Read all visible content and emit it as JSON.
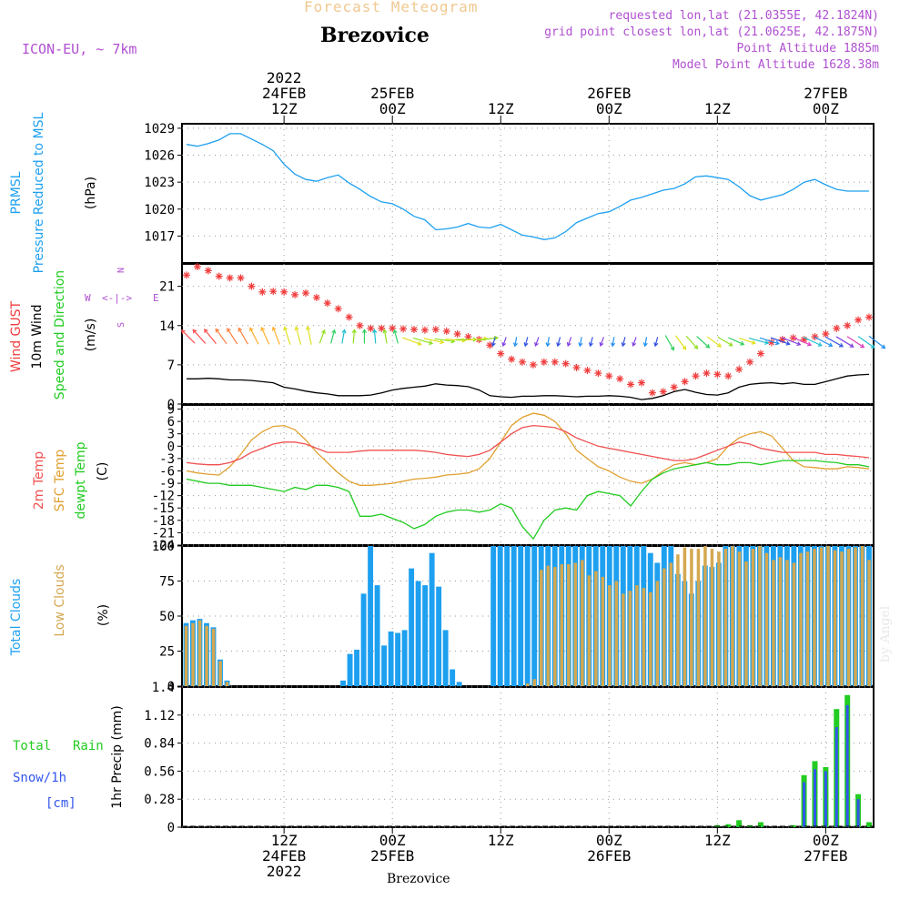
{
  "header": {
    "supertitle": "Forecast Meteogram",
    "model": "ICON-EU, ~ 7km",
    "location": "Brezovice",
    "requested": "requested lon,lat (21.0355E, 42.1824N)",
    "grid_point": "grid point closest lon,lat (21.0625E, 42.1875N)",
    "point_altitude": "Point Altitude 1885m",
    "model_altitude": "Model Point Altitude 1628.38m",
    "credit": "by Angel",
    "footer_location": "Brezovice"
  },
  "colors": {
    "pressure": "#1ea0f0",
    "gust": "#f03c3c",
    "wind": "#000000",
    "t2m": "#f05050",
    "sfc": "#e0a030",
    "dewpt": "#22cc22",
    "total_clouds": "#1ea0f0",
    "low_clouds": "#d4a850",
    "rain": "#22cc22",
    "snow": "#3355ee",
    "meta": "#b050d0"
  },
  "chart_data": [
    {
      "type": "line",
      "panel": "pressure",
      "ylabel_lines": [
        "PRMSL",
        "Pressure Reduced to MSL"
      ],
      "unit": "(hPa)",
      "ylim": [
        1014,
        1029.5
      ],
      "yticks": [
        1017,
        1020,
        1023,
        1026,
        1029
      ],
      "series": [
        {
          "name": "PRMSL",
          "x": [
            0,
            1,
            2,
            3,
            4,
            5,
            6,
            7,
            8,
            9,
            10,
            11,
            12,
            13,
            14,
            15,
            16,
            17,
            18,
            19,
            20,
            21,
            22,
            23,
            24,
            25,
            26,
            27,
            28,
            29,
            30,
            31,
            32,
            33,
            34,
            35,
            36,
            37,
            38,
            39,
            40,
            41,
            42,
            43,
            44,
            45,
            46,
            47,
            48,
            49,
            50,
            51,
            52,
            53,
            54,
            55,
            56,
            57,
            58,
            59,
            60,
            61,
            62,
            63
          ],
          "values": [
            1027.2,
            1027.0,
            1027.3,
            1027.7,
            1028.4,
            1028.4,
            1027.8,
            1027.2,
            1026.5,
            1025.0,
            1023.9,
            1023.3,
            1023.1,
            1023.5,
            1023.8,
            1022.9,
            1022.2,
            1021.4,
            1020.8,
            1020.6,
            1020.0,
            1019.2,
            1018.8,
            1017.7,
            1017.8,
            1018.0,
            1018.4,
            1018.0,
            1017.9,
            1018.3,
            1017.7,
            1017.1,
            1016.9,
            1016.6,
            1016.8,
            1017.5,
            1018.5,
            1019.0,
            1019.5,
            1019.7,
            1020.3,
            1021.0,
            1021.3,
            1021.7,
            1022.1,
            1022.3,
            1022.8,
            1023.6,
            1023.7,
            1023.5,
            1023.3,
            1022.5,
            1021.5,
            1021.0,
            1021.3,
            1021.6,
            1022.2,
            1023.0,
            1023.3,
            1022.7,
            1022.2,
            1022.0,
            1022.0,
            1022.0
          ]
        }
      ]
    },
    {
      "type": "line",
      "panel": "wind",
      "ylabel_lines": [
        "Wind GUST",
        "10m Wind",
        "Speed and Direction"
      ],
      "unit": "(m/s)",
      "compass": {
        "n": "N",
        "s": "S",
        "w": "W",
        "e": "E"
      },
      "ylim": [
        0,
        25
      ],
      "yticks": [
        0,
        7,
        14,
        21
      ],
      "series": [
        {
          "name": "Wind GUST",
          "values": [
            23,
            24.5,
            23.8,
            22.8,
            22.5,
            22.5,
            21,
            20,
            20.1,
            20,
            19.5,
            19.8,
            19,
            18,
            17,
            15.5,
            14,
            13.5,
            13.5,
            13.5,
            13.4,
            13.3,
            13.2,
            13.3,
            13,
            12.5,
            12,
            11.5,
            10.5,
            9,
            8,
            7.5,
            7,
            7.5,
            7.5,
            7.2,
            6.5,
            6,
            5.5,
            5,
            4.5,
            3.5,
            3.8,
            2,
            2.2,
            3,
            4,
            5,
            5.5,
            5.3,
            5,
            6.2,
            7.5,
            9,
            11,
            11.5,
            11.8,
            11.5,
            12,
            12.5,
            13.5,
            14,
            15,
            15.5
          ]
        },
        {
          "name": "10m Wind",
          "values": [
            4.5,
            4.5,
            4.6,
            4.5,
            4.3,
            4.3,
            4.2,
            4.0,
            3.8,
            3.0,
            2.7,
            2.3,
            2.0,
            1.8,
            1.5,
            1.5,
            1.5,
            1.6,
            2.0,
            2.5,
            2.8,
            3.0,
            3.2,
            3.6,
            3.4,
            3.3,
            3.1,
            2.5,
            1.5,
            1.3,
            1.2,
            1.4,
            1.4,
            1.5,
            1.5,
            1.4,
            1.3,
            1.4,
            1.4,
            1.5,
            1.4,
            1.2,
            0.8,
            1.0,
            1.5,
            2.2,
            2.6,
            2.1,
            1.7,
            1.6,
            2.0,
            3.0,
            3.5,
            3.7,
            3.8,
            3.6,
            3.8,
            3.5,
            3.5,
            4.0,
            4.5,
            5.0,
            5.2,
            5.3
          ]
        }
      ]
    },
    {
      "type": "line",
      "panel": "temperature",
      "ylabel_lines": [
        "2m Temp",
        "SFC Temp",
        "dewpt Temp"
      ],
      "unit": "(C)",
      "ylim": [
        -24,
        10
      ],
      "yticks": [
        9,
        6,
        3,
        0,
        -3,
        -6,
        -9,
        -12,
        -15,
        -18,
        -21,
        -24
      ],
      "series": [
        {
          "name": "2m Temp",
          "values": [
            -4,
            -4.3,
            -4.5,
            -4.5,
            -4,
            -3,
            -1.5,
            -0.5,
            0.5,
            1,
            1,
            0.5,
            -0.5,
            -1.5,
            -1.5,
            -1.5,
            -1.2,
            -1,
            -1,
            -1,
            -1,
            -1,
            -1.2,
            -1.5,
            -2,
            -2.3,
            -2.5,
            -2,
            -1,
            1,
            3,
            4.5,
            5,
            4.8,
            4.5,
            3.5,
            2,
            1,
            0,
            -0.5,
            -1,
            -1.5,
            -2,
            -2.5,
            -3,
            -3.5,
            -3.5,
            -3,
            -2,
            -1,
            0,
            1,
            0.5,
            -0.5,
            -1,
            -1.5,
            -1.5,
            -1.5,
            -1.5,
            -2,
            -2,
            -2.3,
            -2.5,
            -2.8
          ]
        },
        {
          "name": "SFC Temp",
          "values": [
            -6,
            -6.5,
            -6.8,
            -7,
            -5,
            -2,
            1.5,
            3.5,
            4.8,
            5,
            4,
            1.5,
            -1.5,
            -4,
            -6.5,
            -8.5,
            -9.5,
            -9.5,
            -9.3,
            -9,
            -8.5,
            -8,
            -7.8,
            -7.5,
            -7,
            -6.8,
            -6.5,
            -5.5,
            -3,
            1,
            5,
            7,
            8,
            7.5,
            6,
            3,
            -1,
            -3,
            -5,
            -6,
            -7.5,
            -8.5,
            -9,
            -8,
            -6,
            -4.5,
            -4,
            -4.5,
            -4,
            -3,
            0,
            2,
            3,
            3.5,
            2.5,
            -0.5,
            -3.5,
            -5,
            -5.2,
            -5.5,
            -5.5,
            -5,
            -5.2,
            -5.5
          ]
        },
        {
          "name": "dewpt Temp",
          "values": [
            -8,
            -8.5,
            -9,
            -9,
            -9.5,
            -9.5,
            -9.5,
            -10,
            -10.5,
            -11,
            -10,
            -10.5,
            -9.5,
            -9.5,
            -10,
            -11,
            -17,
            -17,
            -16.5,
            -17.5,
            -18.5,
            -20,
            -19,
            -17,
            -16,
            -15.5,
            -15.5,
            -16,
            -15.5,
            -14,
            -15,
            -19.5,
            -22.5,
            -18,
            -15.5,
            -15,
            -15.5,
            -12,
            -11,
            -11.5,
            -12,
            -14.5,
            -11,
            -8,
            -6.5,
            -5.5,
            -5,
            -4.5,
            -4,
            -4.5,
            -4.5,
            -4,
            -4,
            -4.5,
            -4,
            -3.5,
            -3.5,
            -3.5,
            -3.5,
            -3.8,
            -4,
            -4.5,
            -4.5,
            -5
          ]
        }
      ]
    },
    {
      "type": "bar",
      "panel": "clouds",
      "ylabel_lines": [
        "Total Clouds",
        "Low Clouds"
      ],
      "unit": "(%)",
      "ylim": [
        0,
        100
      ],
      "yticks": [
        0,
        25,
        50,
        75,
        100
      ],
      "series": [
        {
          "name": "Total Clouds",
          "values": [
            45,
            47,
            48,
            45,
            42,
            19,
            4,
            0,
            0,
            0,
            0,
            0,
            0,
            0,
            0,
            0,
            0,
            0,
            0,
            0,
            0,
            0,
            0,
            4,
            23,
            26,
            66,
            100,
            72,
            29,
            39,
            38,
            40,
            84,
            75,
            72,
            95,
            71,
            40,
            12,
            3,
            0,
            0,
            0,
            0,
            100,
            100,
            100,
            100,
            100,
            100,
            100,
            100,
            100,
            100,
            100,
            100,
            100,
            100,
            100,
            100,
            100,
            100,
            100,
            100,
            100,
            100,
            100,
            95,
            88,
            100,
            100,
            80,
            75,
            66,
            75,
            86,
            85,
            88,
            100,
            100,
            100,
            100,
            100,
            100,
            100,
            100,
            100,
            100,
            100,
            100,
            100,
            100,
            100,
            100,
            100,
            100,
            100,
            100,
            100,
            100
          ]
        },
        {
          "name": "Low Clouds",
          "values": [
            43,
            45,
            47,
            43,
            41,
            18,
            3,
            0,
            0,
            0,
            0,
            0,
            0,
            0,
            0,
            0,
            0,
            0,
            0,
            0,
            0,
            0,
            0,
            0,
            0,
            0,
            0,
            0,
            0,
            0,
            0,
            0,
            0,
            0,
            0,
            0,
            0,
            0,
            0,
            0,
            0,
            0,
            0,
            0,
            0,
            0,
            0,
            0,
            0,
            0,
            2,
            5,
            83,
            86,
            85,
            87,
            87,
            88,
            90,
            79,
            82,
            78,
            72,
            75,
            66,
            68,
            72,
            70,
            67,
            75,
            84,
            88,
            94,
            99,
            98,
            98,
            100,
            98,
            96,
            98,
            100,
            96,
            89,
            98,
            100,
            95,
            90,
            92,
            90,
            88,
            95,
            96,
            98,
            99,
            100,
            97,
            96,
            98,
            99,
            100,
            90
          ]
        }
      ]
    },
    {
      "type": "bar",
      "panel": "precip",
      "ylabel_lines": [
        "Total Rain",
        "Snow/1h",
        "[cm]"
      ],
      "ylabel": "1hr Precip (mm)",
      "ylim": [
        0,
        1.4
      ],
      "yticks": [
        0,
        0.28,
        0.56,
        0.84,
        1.12,
        1.4
      ],
      "series": [
        {
          "name": "Total Rain",
          "x": [
            49,
            50,
            51,
            52,
            53,
            54,
            56,
            57,
            58,
            59,
            60,
            61,
            62,
            63
          ],
          "values": [
            0.02,
            0.03,
            0.07,
            0.02,
            0.05,
            0.0,
            0.02,
            0.52,
            0.66,
            0.6,
            1.18,
            1.32,
            0.33,
            0.05
          ]
        },
        {
          "name": "Snow/1h",
          "x": [
            56,
            57,
            58,
            59,
            60,
            61,
            62,
            63
          ],
          "values": [
            0.0,
            0.45,
            0.58,
            0.56,
            1.0,
            1.22,
            0.28,
            0.0
          ]
        }
      ]
    }
  ],
  "time_axis": {
    "top_ticks": [
      {
        "x": 9,
        "lines": [
          "2022",
          "24FEB",
          "12Z"
        ]
      },
      {
        "x": 19,
        "lines": [
          "25FEB",
          "00Z"
        ]
      },
      {
        "x": 29,
        "lines": [
          "12Z"
        ]
      },
      {
        "x": 39,
        "lines": [
          "26FEB",
          "00Z"
        ]
      },
      {
        "x": 49,
        "lines": [
          "12Z"
        ]
      },
      {
        "x": 59,
        "lines": [
          "27FEB",
          "00Z"
        ]
      }
    ],
    "bottom_ticks": [
      {
        "x": 9,
        "lines": [
          "12Z",
          "24FEB",
          "2022"
        ]
      },
      {
        "x": 19,
        "lines": [
          "00Z",
          "25FEB"
        ]
      },
      {
        "x": 29,
        "lines": [
          "12Z"
        ]
      },
      {
        "x": 39,
        "lines": [
          "00Z",
          "26FEB"
        ]
      },
      {
        "x": 49,
        "lines": [
          "12Z"
        ]
      },
      {
        "x": 59,
        "lines": [
          "00Z",
          "27FEB"
        ]
      }
    ]
  }
}
